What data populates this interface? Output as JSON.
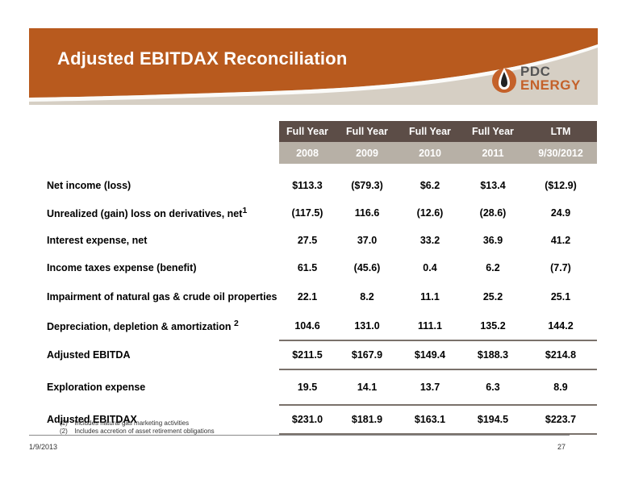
{
  "title": "Adjusted EBITDAX Reconciliation",
  "logo": {
    "line1": "PDC",
    "line2": "ENERGY"
  },
  "colors": {
    "banner_orange": "#b85a1e",
    "banner_tan": "#d6cfc4",
    "header_dark": "#5c4d47",
    "header_light": "#b7b0a6"
  },
  "table": {
    "header_row1": [
      "Full Year",
      "Full Year",
      "Full Year",
      "Full Year",
      "LTM"
    ],
    "header_row2": [
      "2008",
      "2009",
      "2010",
      "2011",
      "9/30/2012"
    ],
    "rows": [
      {
        "label": "Net income (loss)",
        "sup": "",
        "values": [
          "$113.3",
          "($79.3)",
          "$6.2",
          "$13.4",
          "($12.9)"
        ]
      },
      {
        "label": "Unrealized (gain) loss on derivatives, net",
        "sup": "1",
        "values": [
          "(117.5)",
          "116.6",
          "(12.6)",
          "(28.6)",
          "24.9"
        ]
      },
      {
        "label": "Interest expense, net",
        "sup": "",
        "values": [
          "27.5",
          "37.0",
          "33.2",
          "36.9",
          "41.2"
        ]
      },
      {
        "label": "Income taxes expense (benefit)",
        "sup": "",
        "values": [
          "61.5",
          "(45.6)",
          "0.4",
          "6.2",
          "(7.7)"
        ]
      },
      {
        "label": "Impairment of natural gas & crude oil properties",
        "sup": "",
        "values": [
          "22.1",
          "8.2",
          "11.1",
          "25.2",
          "25.1"
        ]
      },
      {
        "label": "Depreciation, depletion & amortization",
        "sup": "2",
        "values": [
          "104.6",
          "131.0",
          "111.1",
          "135.2",
          "144.2"
        ]
      },
      {
        "label": "Adjusted EBITDA",
        "sup": "",
        "values": [
          "$211.5",
          "$167.9",
          "$149.4",
          "$188.3",
          "$214.8"
        ]
      },
      {
        "label": "Exploration expense",
        "sup": "",
        "values": [
          "19.5",
          "14.1",
          "13.7",
          "6.3",
          "8.9"
        ]
      },
      {
        "label": "Adjusted EBITDAX",
        "sup": "",
        "values": [
          "$231.0",
          "$181.9",
          "$163.1",
          "$194.5",
          "$223.7"
        ]
      }
    ]
  },
  "footnotes": [
    {
      "num": "(1)",
      "text": "Includes natural gas marketing activities"
    },
    {
      "num": "(2)",
      "text": "Includes accretion of asset retirement obligations"
    }
  ],
  "footer": {
    "date": "1/9/2013",
    "page": "27"
  }
}
